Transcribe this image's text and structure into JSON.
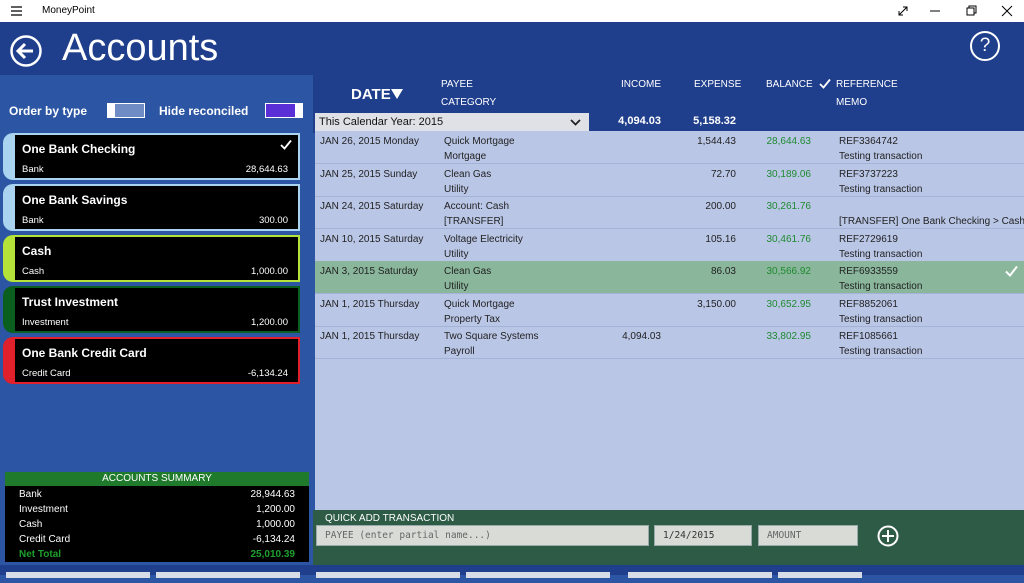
{
  "app_title": "MoneyPoint",
  "page_title": "Accounts",
  "help": "?",
  "filters": {
    "order_by_type": "Order by type",
    "hide_reconciled": "Hide reconciled"
  },
  "accounts": [
    {
      "name": "One Bank Checking",
      "type": "Bank",
      "balance": "28,644.63"
    },
    {
      "name": "One Bank Savings",
      "type": "Bank",
      "balance": "300.00"
    },
    {
      "name": "Cash",
      "type": "Cash",
      "balance": "1,000.00"
    },
    {
      "name": "Trust Investment",
      "type": "Investment",
      "balance": "1,200.00"
    },
    {
      "name": "One Bank Credit Card",
      "type": "Credit Card",
      "balance": "-6,134.24"
    }
  ],
  "summary": {
    "title": "ACCOUNTS SUMMARY",
    "rows": [
      [
        "Bank",
        "28,944.63"
      ],
      [
        "Investment",
        "1,200.00"
      ],
      [
        "Cash",
        "1,000.00"
      ],
      [
        "Credit Card",
        "-6,134.24"
      ]
    ],
    "net_total": [
      "Net Total",
      "25,010.39"
    ]
  },
  "columns": {
    "date": "DATE",
    "payee": "PAYEE",
    "category": "CATEGORY",
    "income": "INCOME",
    "expense": "EXPENSE",
    "balance": "BALANCE",
    "reference": "REFERENCE",
    "memo": "MEMO"
  },
  "period": "This Calendar Year: 2015",
  "totals": {
    "income": "4,094.03",
    "expense": "5,158.32"
  },
  "transactions": [
    {
      "date": "JAN 26, 2015 Monday",
      "payee": "Quick Mortgage",
      "category": "Mortgage",
      "income": null,
      "expense": "1,544.43",
      "balance": "28,644.63",
      "reference": "REF3364742",
      "memo": "Testing transaction"
    },
    {
      "date": "JAN 25, 2015 Sunday",
      "payee": "Clean Gas",
      "category": "Utility",
      "income": null,
      "expense": "72.70",
      "balance": "30,189.06",
      "reference": "REF3737223",
      "memo": "Testing transaction"
    },
    {
      "date": "JAN 24, 2015 Saturday",
      "payee": "Account: Cash",
      "category": "[TRANSFER]",
      "income": null,
      "expense": "200.00",
      "balance": "30,261.76",
      "reference": null,
      "memo": "[TRANSFER] One Bank Checking > Cash"
    },
    {
      "date": "JAN 10, 2015 Saturday",
      "payee": "Voltage Electricity",
      "category": "Utility",
      "income": null,
      "expense": "105.16",
      "balance": "30,461.76",
      "reference": "REF2729619",
      "memo": "Testing transaction"
    },
    {
      "date": "JAN 3, 2015 Saturday",
      "payee": "Clean Gas",
      "category": "Utility",
      "income": null,
      "expense": "86.03",
      "balance": "30,566.92",
      "reference": "REF6933559",
      "memo": "Testing transaction"
    },
    {
      "date": "JAN 1, 2015 Thursday",
      "payee": "Quick Mortgage",
      "category": "Property Tax",
      "income": null,
      "expense": "3,150.00",
      "balance": "30,652.95",
      "reference": "REF8852061",
      "memo": "Testing transaction"
    },
    {
      "date": "JAN 1, 2015 Thursday",
      "payee": "Two Square Systems",
      "category": "Payroll",
      "income": "4,094.03",
      "expense": null,
      "balance": "33,802.95",
      "reference": "REF1085661",
      "memo": "Testing transaction"
    }
  ],
  "quick_add": {
    "title": "QUICK ADD TRANSACTION",
    "payee_placeholder": "PAYEE (enter partial name...)",
    "date": "1/24/2015",
    "amount_placeholder": "AMOUNT"
  }
}
